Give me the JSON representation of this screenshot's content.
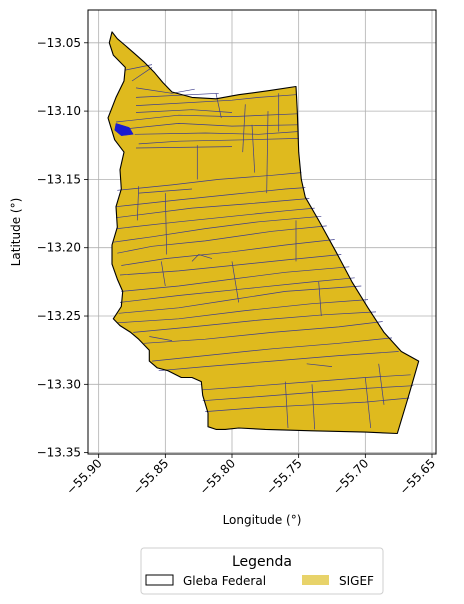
{
  "chart_data": {
    "type": "map",
    "xlabel": "Longitude (°)",
    "ylabel": "Latitude (°)",
    "xlim": [
      -55.908,
      -55.647
    ],
    "ylim": [
      -13.351,
      -13.026
    ],
    "xticks": [
      -55.9,
      -55.85,
      -55.8,
      -55.75,
      -55.7,
      -55.65
    ],
    "xtick_labels": [
      "−55.90",
      "−55.85",
      "−55.80",
      "−55.75",
      "−55.70",
      "−55.65"
    ],
    "yticks": [
      -13.05,
      -13.1,
      -13.15,
      -13.2,
      -13.25,
      -13.3,
      -13.35
    ],
    "ytick_labels": [
      "−13.05",
      "−13.10",
      "−13.15",
      "−13.20",
      "−13.25",
      "−13.30",
      "−13.35"
    ],
    "grid": true,
    "legend": {
      "title": "Legenda",
      "placement": "bottom-center",
      "entries": [
        {
          "label": "Gleba Federal",
          "style": "outline",
          "color": "#000000"
        },
        {
          "label": "SIGEF",
          "style": "fill",
          "color": "#e8d36a"
        }
      ]
    },
    "colors": {
      "sigef_fill": "#dfba1e",
      "parcel_edge": "#3c3c8c",
      "highlight": "#1a1ad0",
      "boundary": "#000000"
    },
    "boundary": [
      [
        -55.89,
        -13.042
      ],
      [
        -55.886,
        -13.047
      ],
      [
        -55.88,
        -13.052
      ],
      [
        -55.873,
        -13.058
      ],
      [
        -55.866,
        -13.064
      ],
      [
        -55.858,
        -13.072
      ],
      [
        -55.852,
        -13.079
      ],
      [
        -55.845,
        -13.086
      ],
      [
        -55.83,
        -13.09
      ],
      [
        -55.812,
        -13.091
      ],
      [
        -55.795,
        -13.088
      ],
      [
        -55.772,
        -13.085
      ],
      [
        -55.752,
        -13.082
      ],
      [
        -55.751,
        -13.1
      ],
      [
        -55.75,
        -13.13
      ],
      [
        -55.748,
        -13.15
      ],
      [
        -55.745,
        -13.163
      ],
      [
        -55.735,
        -13.18
      ],
      [
        -55.722,
        -13.203
      ],
      [
        -55.71,
        -13.225
      ],
      [
        -55.698,
        -13.244
      ],
      [
        -55.686,
        -13.262
      ],
      [
        -55.673,
        -13.276
      ],
      [
        -55.66,
        -13.283
      ],
      [
        -55.668,
        -13.31
      ],
      [
        -55.676,
        -13.336
      ],
      [
        -55.7,
        -13.335
      ],
      [
        -55.74,
        -13.334
      ],
      [
        -55.775,
        -13.333
      ],
      [
        -55.795,
        -13.332
      ],
      [
        -55.805,
        -13.333
      ],
      [
        -55.812,
        -13.333
      ],
      [
        -55.818,
        -13.331
      ],
      [
        -55.818,
        -13.321
      ],
      [
        -55.822,
        -13.308
      ],
      [
        -55.823,
        -13.298
      ],
      [
        -55.83,
        -13.295
      ],
      [
        -55.838,
        -13.295
      ],
      [
        -55.848,
        -13.29
      ],
      [
        -55.856,
        -13.288
      ],
      [
        -55.862,
        -13.283
      ],
      [
        -55.862,
        -13.275
      ],
      [
        -55.87,
        -13.267
      ],
      [
        -55.876,
        -13.262
      ],
      [
        -55.884,
        -13.257
      ],
      [
        -55.889,
        -13.252
      ],
      [
        -55.883,
        -13.243
      ],
      [
        -55.882,
        -13.232
      ],
      [
        -55.886,
        -13.223
      ],
      [
        -55.89,
        -13.212
      ],
      [
        -55.89,
        -13.198
      ],
      [
        -55.886,
        -13.185
      ],
      [
        -55.887,
        -13.17
      ],
      [
        -55.883,
        -13.157
      ],
      [
        -55.884,
        -13.143
      ],
      [
        -55.881,
        -13.13
      ],
      [
        -55.888,
        -13.121
      ],
      [
        -55.893,
        -13.105
      ],
      [
        -55.887,
        -13.09
      ],
      [
        -55.881,
        -13.078
      ],
      [
        -55.88,
        -13.068
      ],
      [
        -55.889,
        -13.059
      ],
      [
        -55.892,
        -13.05
      ]
    ],
    "highlight_parcel": [
      [
        -55.887,
        -13.109
      ],
      [
        -55.877,
        -13.112
      ],
      [
        -55.874,
        -13.117
      ],
      [
        -55.883,
        -13.118
      ],
      [
        -55.888,
        -13.114
      ]
    ],
    "parcel_lines": [
      [
        [
          -55.88,
          -13.07
        ],
        [
          -55.86,
          -13.066
        ]
      ],
      [
        [
          -55.875,
          -13.078
        ],
        [
          -55.86,
          -13.068
        ]
      ],
      [
        [
          -55.872,
          -13.083
        ],
        [
          -55.845,
          -13.087
        ],
        [
          -55.828,
          -13.084
        ]
      ],
      [
        [
          -55.872,
          -13.09
        ],
        [
          -55.81,
          -13.087
        ]
      ],
      [
        [
          -55.872,
          -13.096
        ],
        [
          -55.8,
          -13.092
        ],
        [
          -55.78,
          -13.09
        ],
        [
          -55.752,
          -13.088
        ]
      ],
      [
        [
          -55.872,
          -13.101
        ],
        [
          -55.83,
          -13.099
        ],
        [
          -55.8,
          -13.101
        ]
      ],
      [
        [
          -55.887,
          -13.108
        ],
        [
          -55.84,
          -13.103
        ],
        [
          -55.8,
          -13.104
        ],
        [
          -55.751,
          -13.102
        ]
      ],
      [
        [
          -55.88,
          -13.113
        ],
        [
          -55.84,
          -13.109
        ],
        [
          -55.8,
          -13.111
        ],
        [
          -55.751,
          -13.11
        ]
      ],
      [
        [
          -55.873,
          -13.117
        ],
        [
          -55.82,
          -13.116
        ],
        [
          -55.78,
          -13.117
        ],
        [
          -55.751,
          -13.115
        ]
      ],
      [
        [
          -55.87,
          -13.124
        ],
        [
          -55.84,
          -13.122
        ],
        [
          -55.79,
          -13.121
        ],
        [
          -55.75,
          -13.12
        ]
      ],
      [
        [
          -55.872,
          -13.127
        ],
        [
          -55.8,
          -13.126
        ]
      ],
      [
        [
          -55.886,
          -13.158
        ],
        [
          -55.845,
          -13.154
        ],
        [
          -55.81,
          -13.15
        ],
        [
          -55.77,
          -13.147
        ],
        [
          -55.748,
          -13.145
        ]
      ],
      [
        [
          -55.87,
          -13.16
        ],
        [
          -55.83,
          -13.157
        ]
      ],
      [
        [
          -55.887,
          -13.17
        ],
        [
          -55.84,
          -13.165
        ],
        [
          -55.8,
          -13.161
        ],
        [
          -55.76,
          -13.157
        ],
        [
          -55.745,
          -13.156
        ]
      ],
      [
        [
          -55.887,
          -13.178
        ],
        [
          -55.83,
          -13.171
        ],
        [
          -55.79,
          -13.168
        ],
        [
          -55.742,
          -13.164
        ]
      ],
      [
        [
          -55.886,
          -13.186
        ],
        [
          -55.84,
          -13.181
        ],
        [
          -55.8,
          -13.177
        ],
        [
          -55.76,
          -13.173
        ],
        [
          -55.738,
          -13.171
        ]
      ],
      [
        [
          -55.889,
          -13.196
        ],
        [
          -55.86,
          -13.192
        ],
        [
          -55.82,
          -13.186
        ],
        [
          -55.78,
          -13.181
        ],
        [
          -55.733,
          -13.177
        ]
      ],
      [
        [
          -55.886,
          -13.204
        ],
        [
          -55.86,
          -13.199
        ],
        [
          -55.82,
          -13.195
        ],
        [
          -55.77,
          -13.188
        ],
        [
          -55.729,
          -13.184
        ]
      ],
      [
        [
          -55.883,
          -13.213
        ],
        [
          -55.85,
          -13.208
        ],
        [
          -55.8,
          -13.203
        ],
        [
          -55.76,
          -13.198
        ],
        [
          -55.723,
          -13.194
        ]
      ],
      [
        [
          -55.884,
          -13.22
        ],
        [
          -55.84,
          -13.217
        ],
        [
          -55.8,
          -13.213
        ],
        [
          -55.76,
          -13.209
        ],
        [
          -55.718,
          -13.205
        ]
      ],
      [
        [
          -55.883,
          -13.232
        ],
        [
          -55.84,
          -13.228
        ],
        [
          -55.8,
          -13.223
        ],
        [
          -55.76,
          -13.218
        ],
        [
          -55.712,
          -13.214
        ]
      ],
      [
        [
          -55.884,
          -13.24
        ],
        [
          -55.84,
          -13.235
        ],
        [
          -55.79,
          -13.23
        ],
        [
          -55.74,
          -13.225
        ],
        [
          -55.708,
          -13.222
        ]
      ],
      [
        [
          -55.885,
          -13.248
        ],
        [
          -55.84,
          -13.244
        ],
        [
          -55.8,
          -13.238
        ],
        [
          -55.76,
          -13.232
        ],
        [
          -55.703,
          -13.228
        ]
      ],
      [
        [
          -55.886,
          -13.255
        ],
        [
          -55.84,
          -13.252
        ],
        [
          -55.79,
          -13.246
        ],
        [
          -55.74,
          -13.241
        ],
        [
          -55.698,
          -13.238
        ]
      ],
      [
        [
          -55.874,
          -13.262
        ],
        [
          -55.83,
          -13.258
        ],
        [
          -55.78,
          -13.253
        ],
        [
          -55.73,
          -13.249
        ],
        [
          -55.692,
          -13.247
        ]
      ],
      [
        [
          -55.866,
          -13.27
        ],
        [
          -55.82,
          -13.267
        ],
        [
          -55.77,
          -13.262
        ],
        [
          -55.72,
          -13.258
        ],
        [
          -55.687,
          -13.254
        ]
      ],
      [
        [
          -55.86,
          -13.283
        ],
        [
          -55.82,
          -13.279
        ],
        [
          -55.77,
          -13.274
        ],
        [
          -55.72,
          -13.27
        ],
        [
          -55.68,
          -13.266
        ]
      ],
      [
        [
          -55.855,
          -13.29
        ],
        [
          -55.82,
          -13.287
        ],
        [
          -55.77,
          -13.283
        ],
        [
          -55.72,
          -13.279
        ],
        [
          -55.675,
          -13.276
        ]
      ],
      [
        [
          -55.822,
          -13.304
        ],
        [
          -55.78,
          -13.301
        ],
        [
          -55.74,
          -13.298
        ],
        [
          -55.7,
          -13.295
        ],
        [
          -55.666,
          -13.293
        ]
      ],
      [
        [
          -55.822,
          -13.312
        ],
        [
          -55.78,
          -13.309
        ],
        [
          -55.74,
          -13.306
        ],
        [
          -55.7,
          -13.303
        ],
        [
          -55.664,
          -13.301
        ]
      ],
      [
        [
          -55.82,
          -13.32
        ],
        [
          -55.78,
          -13.317
        ],
        [
          -55.74,
          -13.315
        ],
        [
          -55.7,
          -13.313
        ],
        [
          -55.667,
          -13.31
        ]
      ],
      [
        [
          -55.87,
          -13.155
        ],
        [
          -55.871,
          -13.18
        ]
      ],
      [
        [
          -55.85,
          -13.16
        ],
        [
          -55.849,
          -13.205
        ]
      ],
      [
        [
          -55.826,
          -13.125
        ],
        [
          -55.826,
          -13.15
        ]
      ],
      [
        [
          -55.812,
          -13.087
        ],
        [
          -55.808,
          -13.105
        ]
      ],
      [
        [
          -55.79,
          -13.095
        ],
        [
          -55.792,
          -13.13
        ]
      ],
      [
        [
          -55.785,
          -13.11
        ],
        [
          -55.783,
          -13.145
        ]
      ],
      [
        [
          -55.773,
          -13.1
        ],
        [
          -55.774,
          -13.16
        ]
      ],
      [
        [
          -55.765,
          -13.087
        ],
        [
          -55.765,
          -13.115
        ]
      ],
      [
        [
          -55.8,
          -13.21
        ],
        [
          -55.795,
          -13.24
        ]
      ],
      [
        [
          -55.752,
          -13.18
        ],
        [
          -55.752,
          -13.21
        ]
      ],
      [
        [
          -55.735,
          -13.225
        ],
        [
          -55.733,
          -13.25
        ]
      ],
      [
        [
          -55.76,
          -13.298
        ],
        [
          -55.758,
          -13.332
        ]
      ],
      [
        [
          -55.74,
          -13.3
        ],
        [
          -55.738,
          -13.333
        ]
      ],
      [
        [
          -55.7,
          -13.295
        ],
        [
          -55.696,
          -13.332
        ]
      ],
      [
        [
          -55.69,
          -13.285
        ],
        [
          -55.686,
          -13.315
        ]
      ],
      [
        [
          -55.85,
          -13.228
        ],
        [
          -55.853,
          -13.21
        ]
      ],
      [
        [
          -55.83,
          -13.21
        ],
        [
          -55.825,
          -13.205
        ],
        [
          -55.815,
          -13.208
        ]
      ],
      [
        [
          -55.862,
          -13.265
        ],
        [
          -55.845,
          -13.268
        ]
      ],
      [
        [
          -55.744,
          -13.285
        ],
        [
          -55.725,
          -13.287
        ]
      ]
    ]
  }
}
